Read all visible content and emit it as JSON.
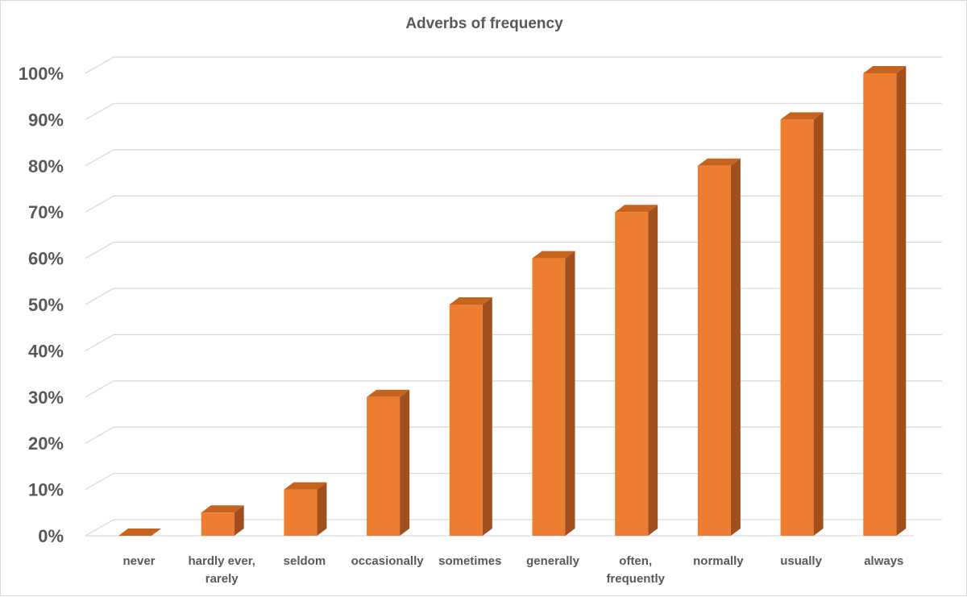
{
  "chart_data": {
    "type": "bar",
    "title": "Adverbs of frequency",
    "categories": [
      [
        "never"
      ],
      [
        "hardly ever,",
        "rarely"
      ],
      [
        "seldom"
      ],
      [
        "occasionally"
      ],
      [
        "sometimes"
      ],
      [
        "generally"
      ],
      [
        "often,",
        "frequently"
      ],
      [
        "normally"
      ],
      [
        "usually"
      ],
      [
        "always"
      ]
    ],
    "values": [
      0,
      5,
      10,
      30,
      50,
      60,
      70,
      80,
      90,
      100
    ],
    "ylim": [
      0,
      100
    ],
    "yticks": [
      "0%",
      "10%",
      "20%",
      "30%",
      "40%",
      "50%",
      "60%",
      "70%",
      "80%",
      "90%",
      "100%"
    ],
    "xlabel": "",
    "ylabel": "",
    "grid": true,
    "style": "3d-column",
    "colors": {
      "front": "#ed7d31",
      "top": "#c5631f",
      "side": "#a04f1d",
      "grid": "#d9d9d9",
      "text": "#595959"
    }
  }
}
